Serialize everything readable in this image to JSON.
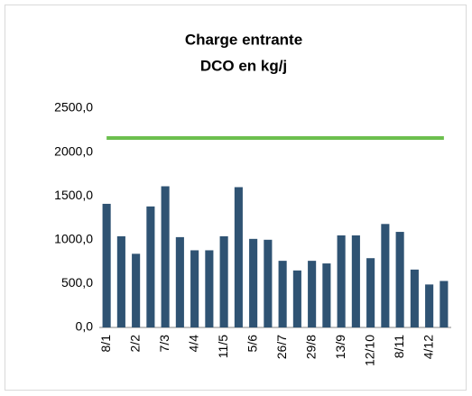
{
  "chart_data": {
    "type": "bar",
    "title": [
      "Charge entrante",
      "DCO en kg/j"
    ],
    "categories": [
      "8/1",
      null,
      "2/2",
      null,
      "7/3",
      null,
      "4/4",
      null,
      "11/5",
      null,
      "5/6",
      null,
      "26/7",
      null,
      "29/8",
      null,
      "13/9",
      null,
      "12/10",
      null,
      "8/11",
      null,
      "4/12",
      null
    ],
    "series": [
      {
        "type": "bar",
        "color": "#2f5373",
        "values": [
          1410,
          1040,
          840,
          1380,
          1610,
          1030,
          880,
          880,
          1040,
          1600,
          1010,
          1000,
          760,
          650,
          760,
          730,
          1050,
          1050,
          790,
          1180,
          1090,
          660,
          490,
          530
        ]
      },
      {
        "type": "line",
        "color": "#6cbf4e",
        "values": [
          2160,
          2160,
          2160,
          2160,
          2160,
          2160,
          2160,
          2160,
          2160,
          2160,
          2160,
          2160,
          2160,
          2160,
          2160,
          2160,
          2160,
          2160,
          2160,
          2160,
          2160,
          2160,
          2160,
          2160
        ]
      }
    ],
    "ylim": [
      0,
      2500
    ],
    "yticks": [
      {
        "value": 0,
        "label": "0,0"
      },
      {
        "value": 500,
        "label": "500,0"
      },
      {
        "value": 1000,
        "label": "1000,0"
      },
      {
        "value": 1500,
        "label": "1500,0"
      },
      {
        "value": 2000,
        "label": "2000,0"
      },
      {
        "value": 2500,
        "label": "2500,0"
      }
    ],
    "grid": false
  }
}
